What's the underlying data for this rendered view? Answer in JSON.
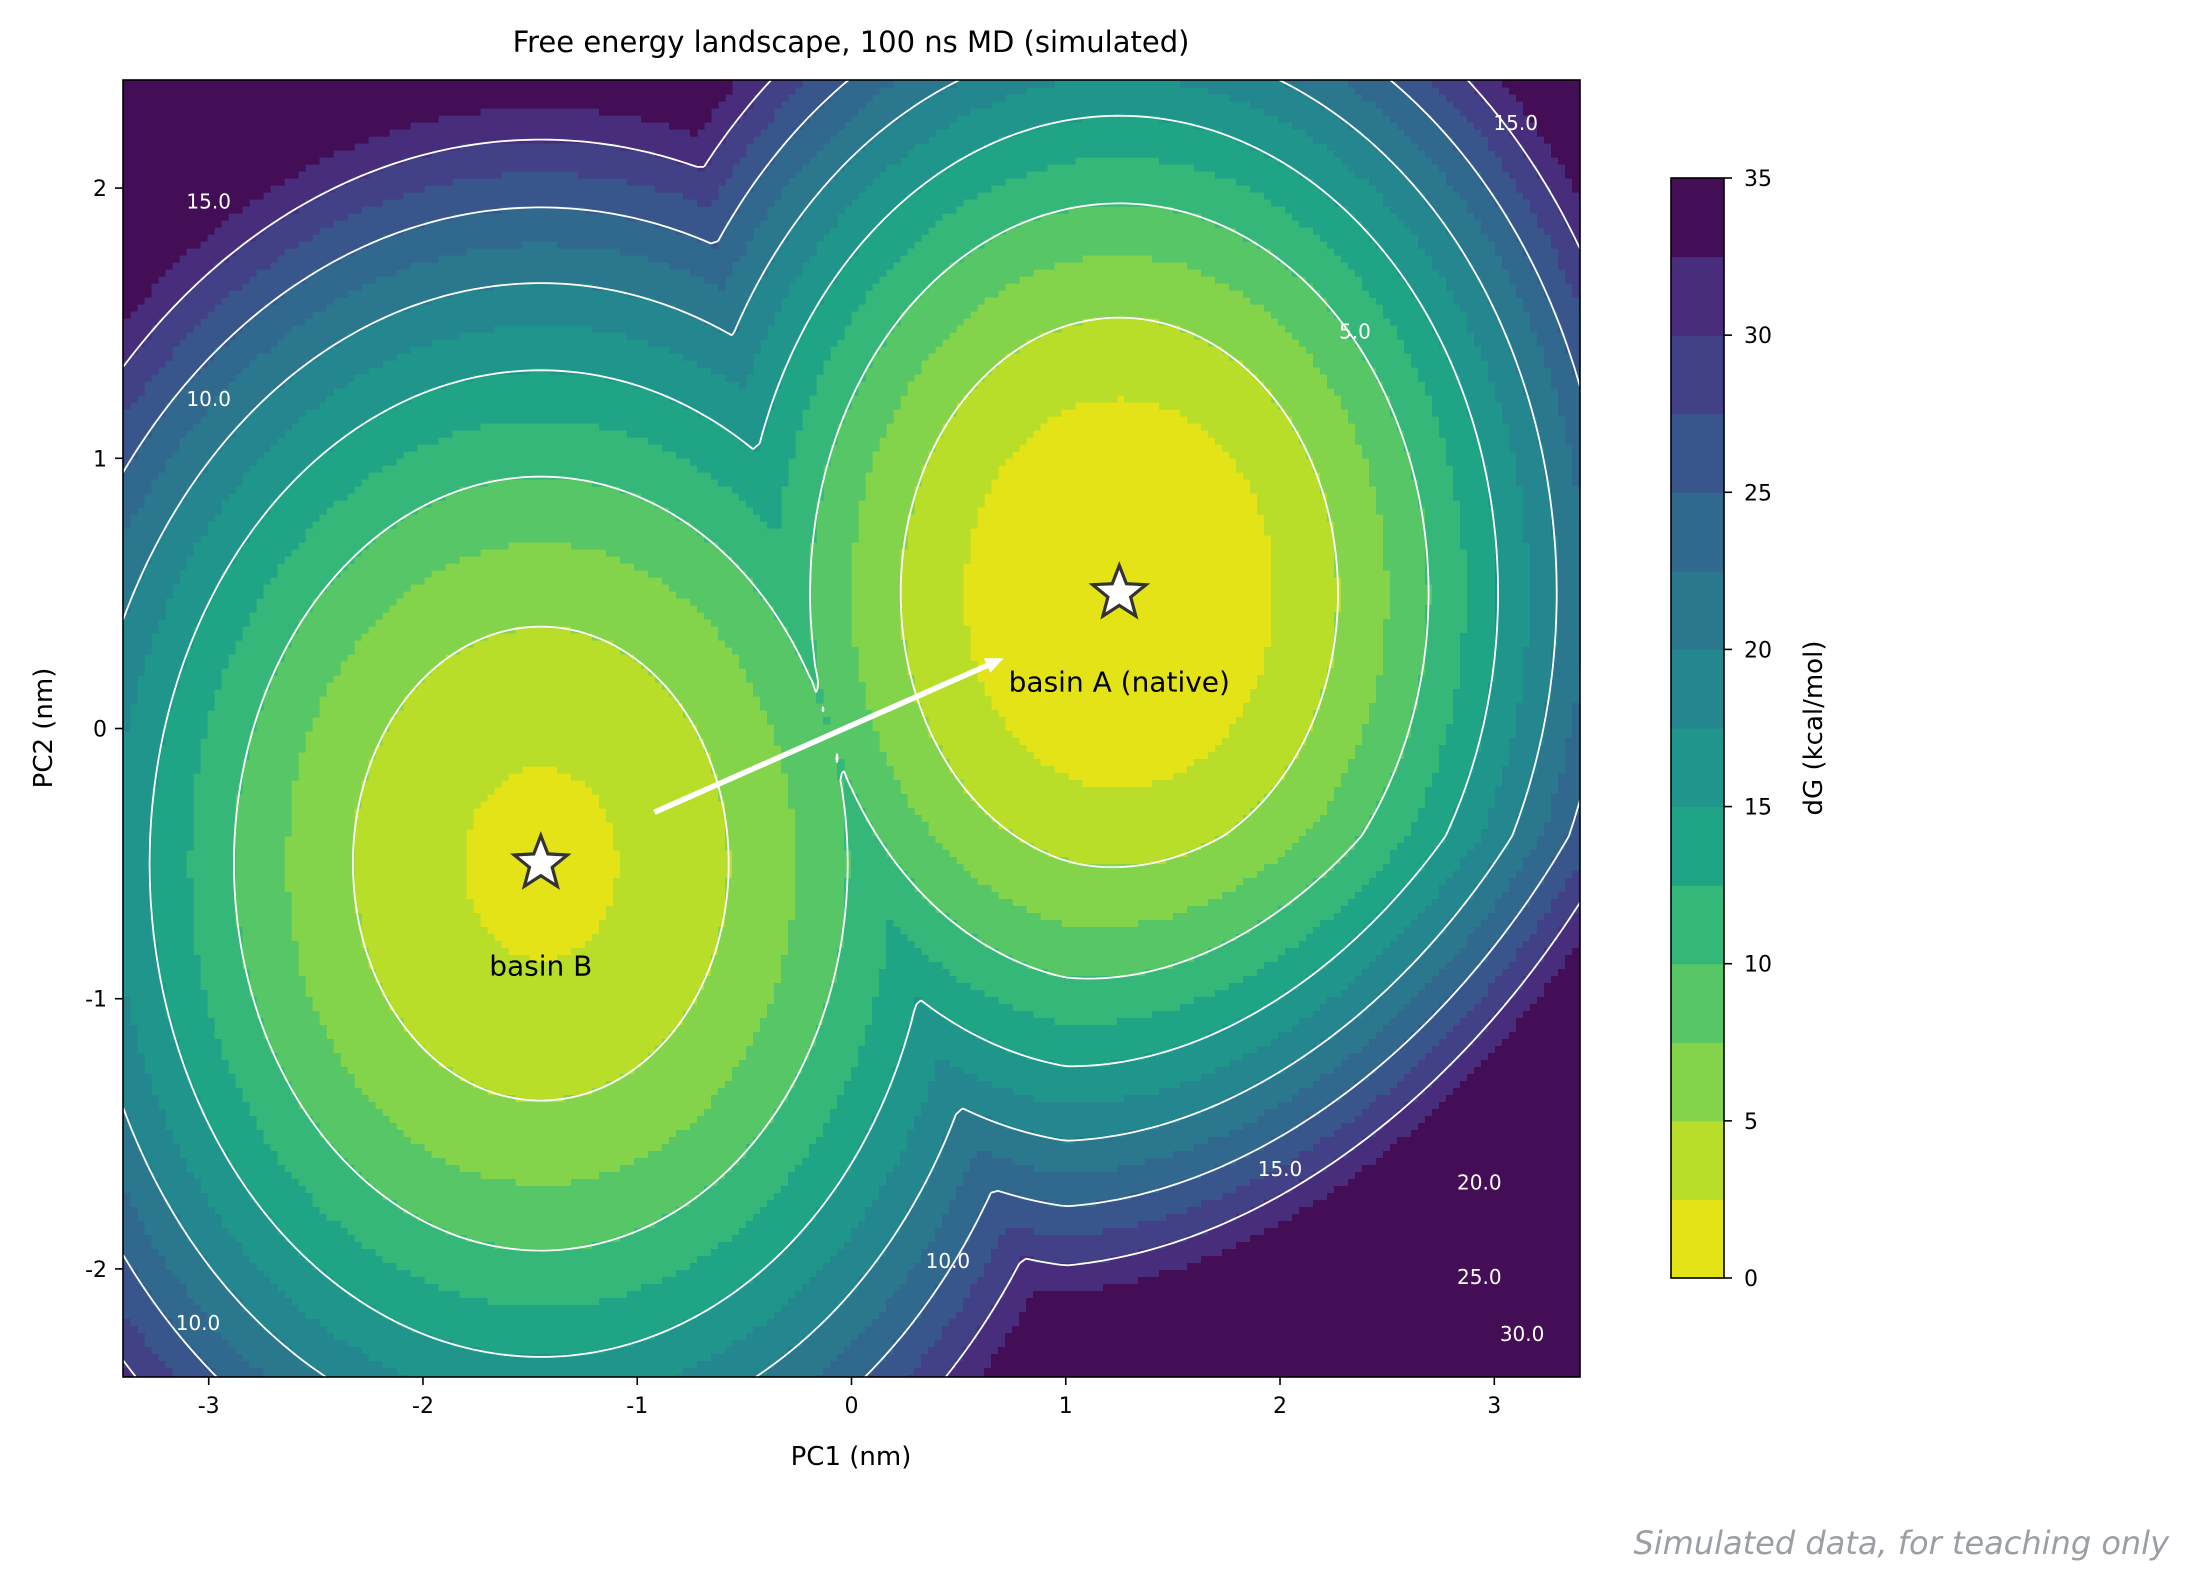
{
  "chart_data": {
    "type": "contour",
    "title": "Free energy landscape, 100 ns MD (simulated)",
    "xlabel": "PC1 (nm)",
    "ylabel": "PC2 (nm)",
    "xlim": [
      -3.4,
      3.4
    ],
    "ylim": [
      -2.4,
      2.4
    ],
    "x_ticks": [
      -3,
      -2,
      -1,
      0,
      1,
      2,
      3
    ],
    "x_tick_labels": [
      "-3",
      "-2",
      "-1",
      "0",
      "1",
      "2",
      "3"
    ],
    "y_ticks": [
      -2,
      -1,
      0,
      1,
      2
    ],
    "y_tick_labels": [
      "-2",
      "-1",
      "0",
      "1",
      "2"
    ],
    "colorbar": {
      "label": "dG (kcal/mol)",
      "levels": [
        0,
        2.5,
        5,
        7.5,
        10,
        12.5,
        15,
        17.5,
        20,
        22.5,
        25,
        27.5,
        30,
        32.5,
        35
      ],
      "ticks": [
        0,
        5,
        10,
        15,
        20,
        25,
        30,
        35
      ],
      "tick_labels": [
        "0",
        "5",
        "10",
        "15",
        "20",
        "25",
        "30",
        "35"
      ],
      "colormap": "viridis_r",
      "colors": [
        "#e4e318",
        "#b8de29",
        "#84d44b",
        "#56c667",
        "#35b779",
        "#20a486",
        "#1f958b",
        "#24868e",
        "#2a778e",
        "#31688e",
        "#39568c",
        "#424086",
        "#472d7b",
        "#440e57"
      ]
    },
    "basins": [
      {
        "name": "basin A (native)",
        "center": [
          1.25,
          0.5
        ]
      },
      {
        "name": "basin B",
        "center": [
          -1.45,
          -0.5
        ]
      }
    ],
    "contour_line_levels": [
      5,
      10,
      15,
      20,
      25,
      30
    ],
    "contour_labels": [
      {
        "text": "15.0",
        "x": -3.0,
        "y": 1.95
      },
      {
        "text": "10.0",
        "x": -3.0,
        "y": 1.22
      },
      {
        "text": "5.0",
        "x": 2.35,
        "y": 1.47
      },
      {
        "text": "15.0",
        "x": 3.1,
        "y": 2.24
      },
      {
        "text": "10.0",
        "x": -3.05,
        "y": -2.2
      },
      {
        "text": "10.0",
        "x": 0.45,
        "y": -1.97
      },
      {
        "text": "15.0",
        "x": 2.0,
        "y": -1.63
      },
      {
        "text": "20.0",
        "x": 2.93,
        "y": -1.68
      },
      {
        "text": "25.0",
        "x": 2.93,
        "y": -2.03
      },
      {
        "text": "30.0",
        "x": 3.13,
        "y": -2.24
      }
    ],
    "arrow": {
      "from": [
        -0.92,
        -0.31
      ],
      "to": [
        0.71,
        0.26
      ]
    },
    "grid": false,
    "legend": "colorbar right"
  },
  "annotations": {
    "basin_a_label": "basin A (native)",
    "basin_b_label": "basin B"
  },
  "footer": {
    "watermark": "Simulated data, for teaching only"
  }
}
